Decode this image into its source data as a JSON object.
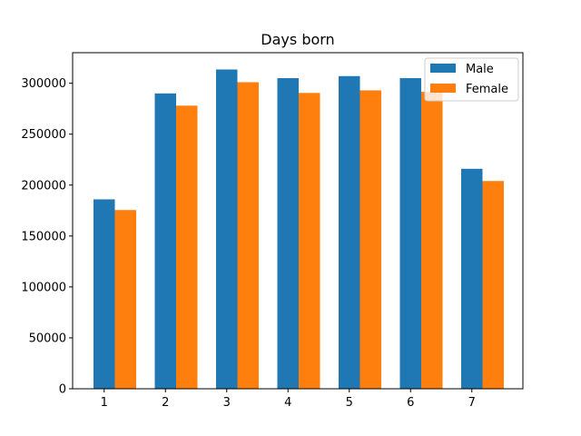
{
  "chart_data": {
    "type": "bar",
    "title": "Days born",
    "xlabel": "",
    "ylabel": "",
    "categories": [
      "1",
      "2",
      "3",
      "4",
      "5",
      "6",
      "7"
    ],
    "series": [
      {
        "name": "Male",
        "color": "#1f77b4",
        "values": [
          186000,
          290000,
          313500,
          305000,
          307000,
          305000,
          216000
        ]
      },
      {
        "name": "Female",
        "color": "#ff7f0e",
        "values": [
          175500,
          278000,
          301000,
          290500,
          293000,
          291500,
          204000
        ]
      }
    ],
    "ylim": [
      0,
      330000
    ],
    "yticks": [
      0,
      50000,
      100000,
      150000,
      200000,
      250000,
      300000
    ],
    "ytick_labels": [
      "0",
      "50000",
      "100000",
      "150000",
      "200000",
      "250000",
      "300000"
    ],
    "grid": false,
    "legend_position": "top-right"
  }
}
